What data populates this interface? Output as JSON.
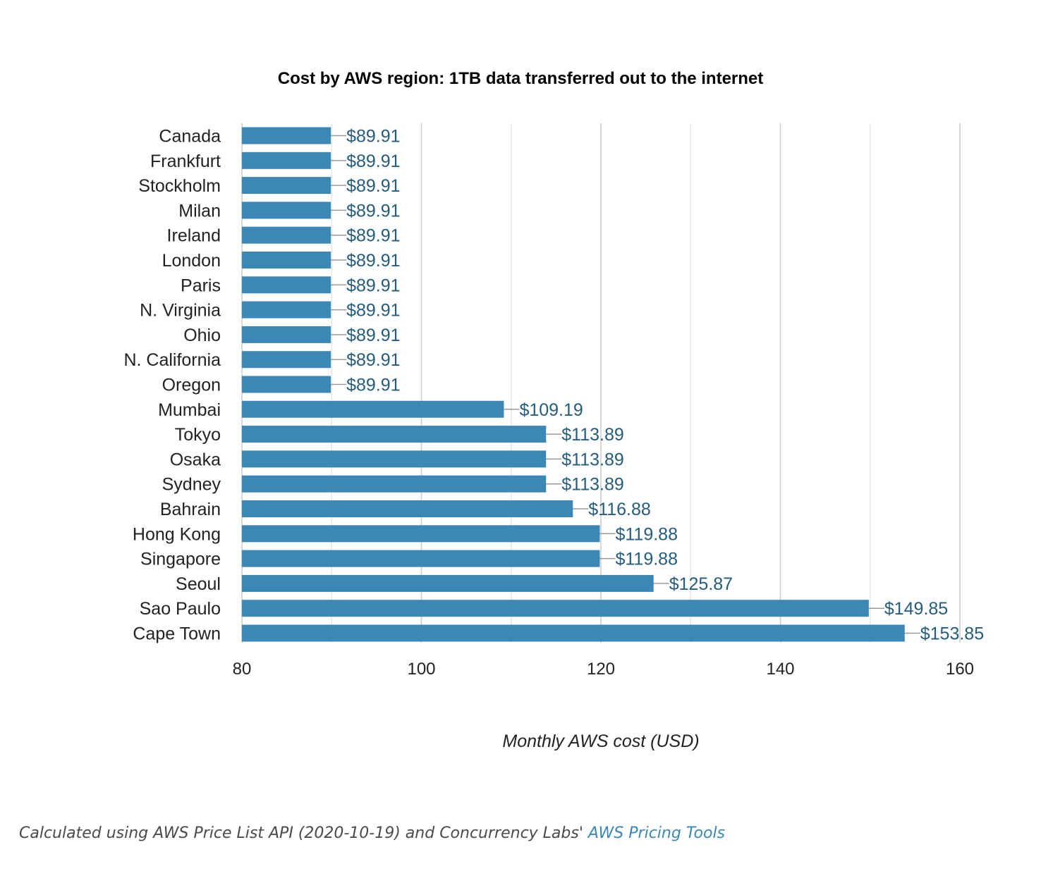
{
  "chart_data": {
    "type": "bar",
    "orientation": "horizontal",
    "title": "Cost by AWS region: 1TB data transferred out to the internet",
    "xlabel": "Monthly AWS cost (USD)",
    "ylabel": "",
    "xlim": [
      80,
      160
    ],
    "ticks": [
      80,
      100,
      120,
      140,
      160
    ],
    "grid": true,
    "bar_color": "#3b87b6",
    "label_color": "#245c7e",
    "categories": [
      "Canada",
      "Frankfurt",
      "Stockholm",
      "Milan",
      "Ireland",
      "London",
      "Paris",
      "N. Virginia",
      "Ohio",
      "N. California",
      "Oregon",
      "Mumbai",
      "Tokyo",
      "Osaka",
      "Sydney",
      "Bahrain",
      "Hong Kong",
      "Singapore",
      "Seoul",
      "Sao Paulo",
      "Cape Town"
    ],
    "values": [
      89.91,
      89.91,
      89.91,
      89.91,
      89.91,
      89.91,
      89.91,
      89.91,
      89.91,
      89.91,
      89.91,
      109.19,
      113.89,
      113.89,
      113.89,
      116.88,
      119.88,
      119.88,
      125.87,
      149.85,
      153.85
    ],
    "value_labels": [
      "$89.91",
      "$89.91",
      "$89.91",
      "$89.91",
      "$89.91",
      "$89.91",
      "$89.91",
      "$89.91",
      "$89.91",
      "$89.91",
      "$89.91",
      "$109.19",
      "$113.89",
      "$113.89",
      "$113.89",
      "$116.88",
      "$119.88",
      "$119.88",
      "$125.87",
      "$149.85",
      "$153.85"
    ]
  },
  "footer": {
    "text": "Calculated using AWS Price List API (2020-10-19) and Concurrency Labs' ",
    "link_text": "AWS Pricing Tools",
    "link_color": "#3a87b8"
  }
}
